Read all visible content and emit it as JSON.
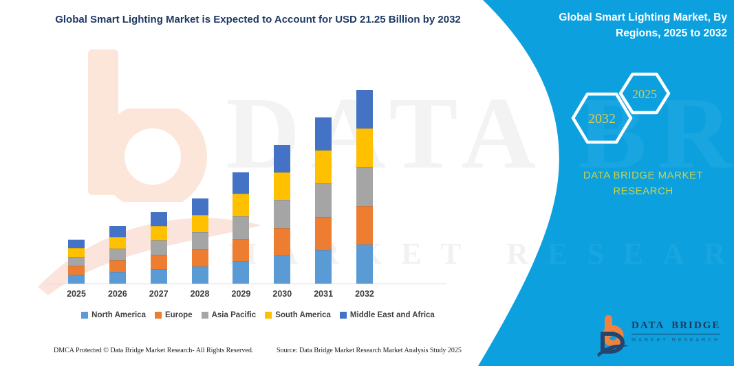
{
  "colors": {
    "panel_teal": "#0ca0df",
    "title_navy": "#1f3864",
    "brand_yellow": "#c7d24f",
    "hex_label_gold": "#d9cb55",
    "axis_gray": "#d8d8d8",
    "label_gray": "#3f3f3f"
  },
  "main_title": "Global Smart Lighting Market is Expected to Account for USD 21.25 Billion by 2032",
  "side_panel": {
    "title": "Global Smart Lighting Market, By Regions, 2025 to 2032",
    "hexagons": [
      {
        "label": "2032"
      },
      {
        "label": "2025"
      }
    ],
    "brand_caption": "DATA BRIDGE MARKET RESEARCH"
  },
  "chart_data": {
    "type": "bar",
    "stacked": true,
    "title": "Global Smart Lighting Market is Expected to Account for USD 21.25 Billion by 2032",
    "unit": "USD Billion",
    "categories": [
      "2025",
      "2026",
      "2027",
      "2028",
      "2029",
      "2030",
      "2031",
      "2032"
    ],
    "series": [
      {
        "name": "North America",
        "color": "#5b9bd5",
        "values": [
          0.92,
          1.22,
          1.53,
          1.83,
          2.42,
          3.03,
          3.64,
          4.25
        ]
      },
      {
        "name": "Europe",
        "color": "#ed7d31",
        "values": [
          0.92,
          1.22,
          1.53,
          1.83,
          2.42,
          3.03,
          3.64,
          4.25
        ]
      },
      {
        "name": "Asia Pacific",
        "color": "#a5a5a5",
        "values": [
          0.92,
          1.22,
          1.53,
          1.83,
          2.42,
          3.03,
          3.64,
          4.25
        ]
      },
      {
        "name": "South America",
        "color": "#ffc000",
        "values": [
          0.92,
          1.22,
          1.53,
          1.83,
          2.42,
          3.03,
          3.64,
          4.25
        ]
      },
      {
        "name": "Middle East and Africa",
        "color": "#4472c4",
        "values": [
          0.92,
          1.22,
          1.53,
          1.83,
          2.42,
          3.03,
          3.64,
          4.25
        ]
      }
    ],
    "totals_estimated": [
      4.6,
      6.1,
      7.65,
      9.15,
      12.1,
      15.15,
      18.2,
      21.25
    ],
    "xlabel": "",
    "ylabel": "",
    "ylim": [
      0,
      21.25
    ],
    "grid": false,
    "y_axis_visible": false,
    "legend_position": "bottom"
  },
  "watermark": {
    "line1": "DATA BRIDGE",
    "line2": "MARKET RESEARCH"
  },
  "footer": {
    "dmca": "DMCA Protected © Data Bridge Market Research-  All Rights Reserved.",
    "source": "Source: Data Bridge Market Research  Market Analysis Study 2025"
  },
  "logo": {
    "brand": "DATA BRIDGE",
    "tagline": "MARKET RESEARCH"
  }
}
